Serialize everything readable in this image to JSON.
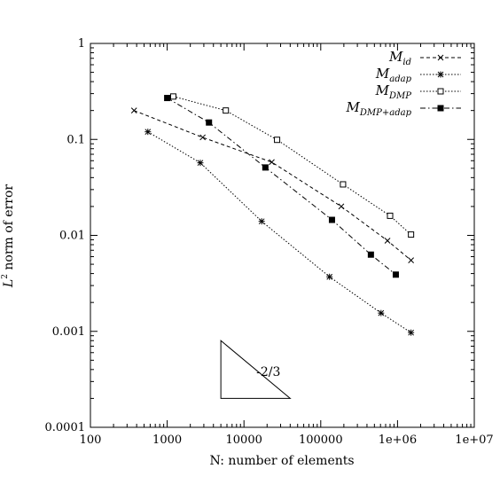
{
  "chart_data": {
    "type": "line",
    "title": "",
    "xlabel": "N: number of elements",
    "ylabel": "L² norm of error",
    "xscale": "log",
    "yscale": "log",
    "xlim": [
      100,
      10000000
    ],
    "ylim": [
      0.0001,
      1
    ],
    "grid": false,
    "legend_position": "top-right",
    "x_tick_labels": [
      "100",
      "1000",
      "10000",
      "100000",
      "1e+06",
      "1e+07"
    ],
    "y_tick_labels": [
      "0.0001",
      "0.001",
      "0.01",
      "0.1",
      "1"
    ],
    "series": [
      {
        "name": "M_id",
        "marker": "x",
        "dash": "dashed",
        "x": [
          370,
          2900,
          23000,
          185000,
          740000,
          1500000
        ],
        "y": [
          0.2,
          0.105,
          0.058,
          0.02,
          0.0088,
          0.0055
        ]
      },
      {
        "name": "M_adap",
        "marker": "asterisk",
        "dash": "dotted",
        "x": [
          560,
          2700,
          17000,
          130000,
          610000,
          1500000
        ],
        "y": [
          0.12,
          0.057,
          0.014,
          0.0037,
          0.00155,
          0.00097
        ]
      },
      {
        "name": "M_DMP",
        "marker": "open-square",
        "dash": "dotted",
        "x": [
          1200,
          5800,
          27000,
          195000,
          800000,
          1500000
        ],
        "y": [
          0.28,
          0.2,
          0.099,
          0.034,
          0.016,
          0.0102
        ]
      },
      {
        "name": "M_DMP+adap",
        "marker": "filled-square",
        "dash": "dashdot",
        "x": [
          1000,
          3500,
          19000,
          140000,
          450000,
          950000
        ],
        "y": [
          0.27,
          0.15,
          0.051,
          0.0145,
          0.0063,
          0.0039
        ]
      }
    ],
    "annotation": {
      "label": "-2/3",
      "slope": -0.6667,
      "x_start": 5000,
      "x_end": 40000,
      "y_base": 0.0002
    }
  },
  "legend": [
    {
      "base": "M",
      "sub": "id"
    },
    {
      "base": "M",
      "sub": "adap"
    },
    {
      "base": "M",
      "sub": "DMP"
    },
    {
      "base": "M",
      "sub": "DMP+adap"
    }
  ]
}
